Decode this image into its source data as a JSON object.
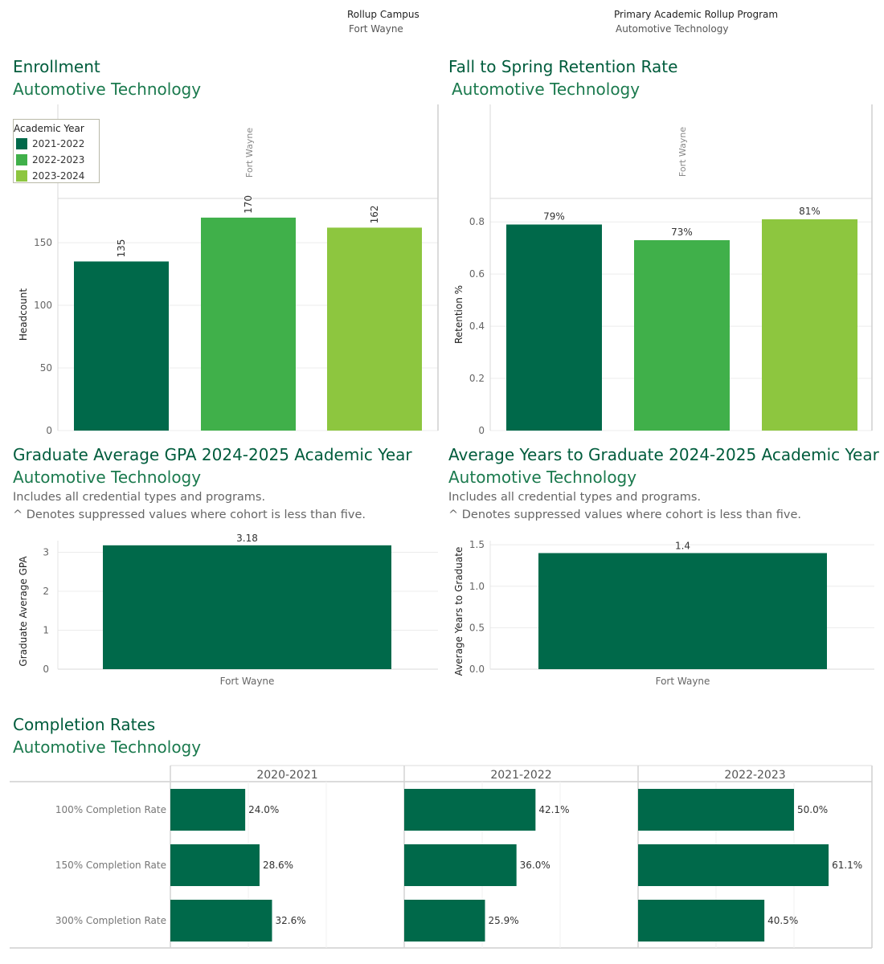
{
  "filters": {
    "campus_label": "Rollup Campus",
    "campus_value": "Fort Wayne",
    "program_label": "Primary Academic Rollup Program",
    "program_value": "Automotive Technology"
  },
  "colors": {
    "dark_green": "#00694a",
    "mid_green": "#40b04a",
    "light_green": "#8dc63f",
    "title_green": "#005c3c"
  },
  "sections": {
    "enrollment": {
      "title": "Enrollment",
      "subtitle": "Automotive Technology"
    },
    "retention": {
      "title": "Fall to Spring Retention Rate",
      "subtitle": "Automotive Technology"
    },
    "gpa": {
      "title": "Graduate Average GPA 2024-2025 Academic Year",
      "subtitle": "Automotive Technology",
      "note1": "Includes all credential types and programs.",
      "note2": "^ Denotes suppressed values where cohort is less than five."
    },
    "years": {
      "title": "Average Years to Graduate 2024-2025 Academic Year",
      "subtitle": "Automotive Technology",
      "note1": "Includes all credential types and programs.",
      "note2": "^ Denotes suppressed values where cohort is less than five."
    },
    "completion": {
      "title": "Completion Rates",
      "subtitle": "Automotive Technology"
    }
  },
  "legend": {
    "title": "Academic Year",
    "items": [
      {
        "label": "2021-2022",
        "color": "#00694a"
      },
      {
        "label": "2022-2023",
        "color": "#40b04a"
      },
      {
        "label": "2023-2024",
        "color": "#8dc63f"
      }
    ]
  },
  "chart_data": [
    {
      "id": "enrollment",
      "type": "bar",
      "column_header": "Fort Wayne",
      "categories": [
        "2021-2022",
        "2022-2023",
        "2023-2024"
      ],
      "values": [
        135,
        170,
        162
      ],
      "labels": [
        "135",
        "170",
        "162"
      ],
      "colors": [
        "#00694a",
        "#40b04a",
        "#8dc63f"
      ],
      "ylabel": "Headcount",
      "ylim": [
        0,
        185
      ],
      "yticks": [
        0,
        50,
        100,
        150
      ],
      "grid": true
    },
    {
      "id": "retention",
      "type": "bar",
      "column_header": "Fort Wayne",
      "categories": [
        "2021-2022",
        "2022-2023",
        "2023-2024"
      ],
      "values": [
        0.79,
        0.73,
        0.81
      ],
      "labels": [
        "79%",
        "73%",
        "81%"
      ],
      "colors": [
        "#00694a",
        "#40b04a",
        "#8dc63f"
      ],
      "ylabel": "Retention %",
      "ylim": [
        0,
        0.85
      ],
      "yticks": [
        0.0,
        0.2,
        0.4,
        0.6,
        0.8
      ],
      "grid": true
    },
    {
      "id": "gpa",
      "type": "bar",
      "categories": [
        "Fort Wayne"
      ],
      "values": [
        3.18
      ],
      "labels": [
        "3.18"
      ],
      "colors": [
        "#00694a"
      ],
      "ylabel": "Graduate Average GPA",
      "ylim": [
        0,
        3.3
      ],
      "yticks": [
        0,
        1,
        2,
        3
      ],
      "grid": true
    },
    {
      "id": "years",
      "type": "bar",
      "categories": [
        "Fort Wayne"
      ],
      "values": [
        1.4
      ],
      "labels": [
        "1.4"
      ],
      "colors": [
        "#00694a"
      ],
      "ylabel": "Average Years to Graduate",
      "ylim": [
        0,
        1.55
      ],
      "yticks": [
        "0.0",
        "0.5",
        "1.0",
        "1.5"
      ],
      "grid": true
    },
    {
      "id": "completion",
      "type": "bar",
      "orientation": "horizontal",
      "panels": [
        "2020-2021",
        "2021-2022",
        "2022-2023"
      ],
      "rows": [
        "100% Completion Rate",
        "150% Completion Rate",
        "300% Completion Rate"
      ],
      "values": [
        [
          0.24,
          0.286,
          0.326
        ],
        [
          0.421,
          0.36,
          0.259
        ],
        [
          0.5,
          0.611,
          0.405
        ]
      ],
      "labels": [
        [
          "24.0%",
          "28.6%",
          "32.6%"
        ],
        [
          "42.1%",
          "36.0%",
          "25.9%"
        ],
        [
          "50.0%",
          "61.1%",
          "40.5%"
        ]
      ],
      "color": "#00694a",
      "xlim": [
        0,
        0.75
      ],
      "grid": true
    }
  ]
}
